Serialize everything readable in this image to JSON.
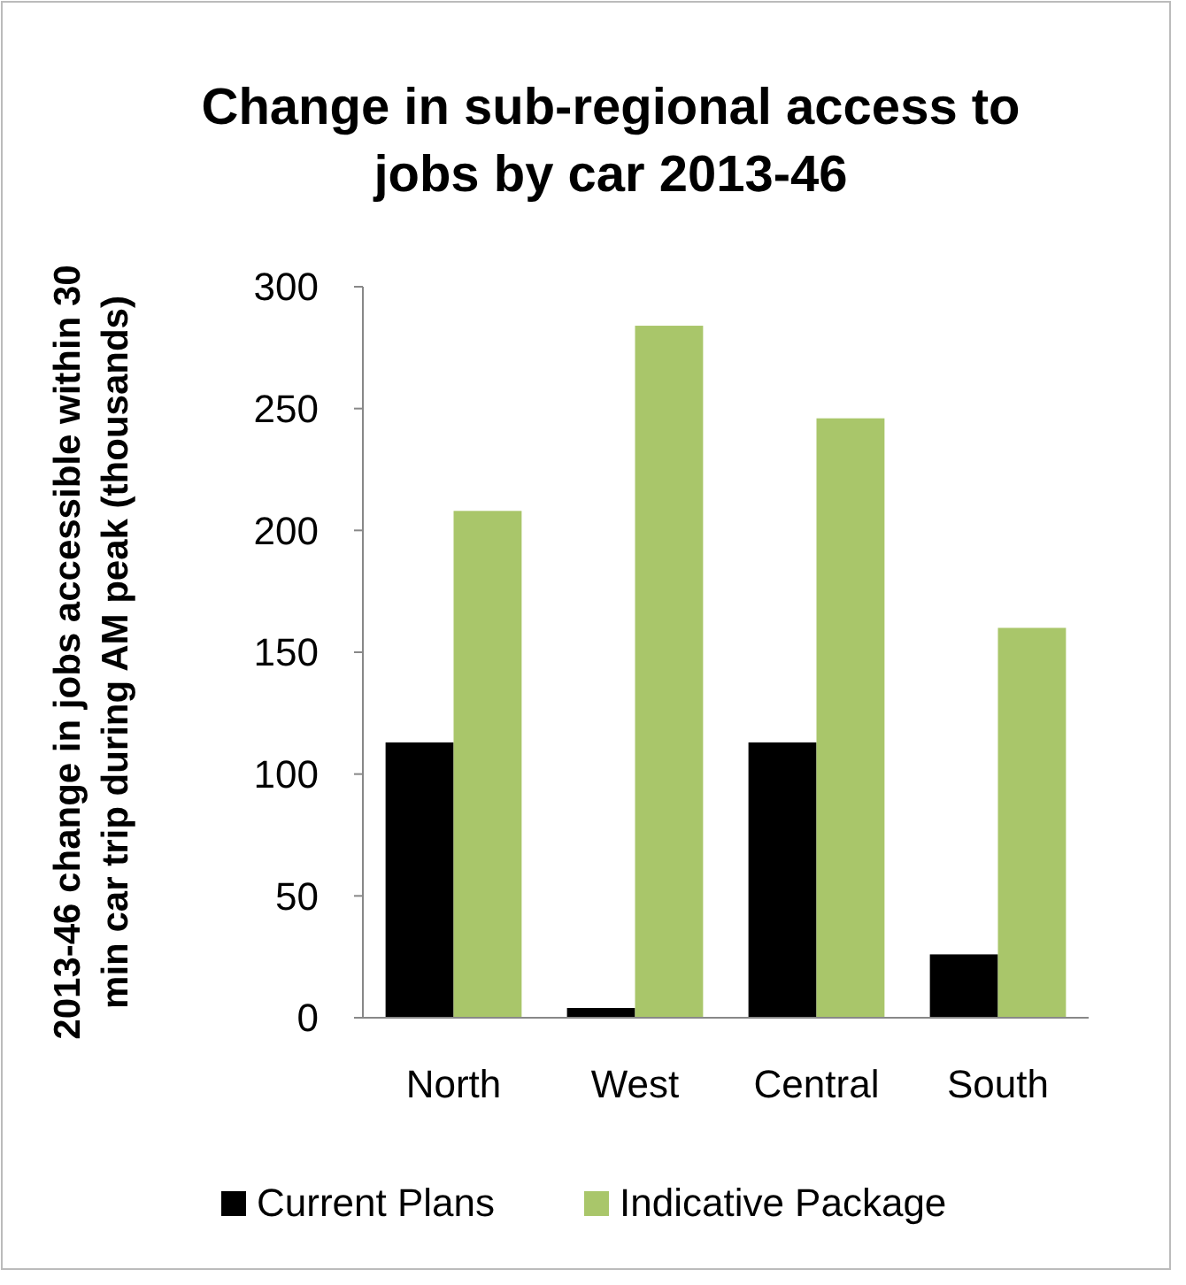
{
  "chart_data": {
    "type": "bar",
    "title": "Change in sub-regional access to jobs by car 2013-46",
    "ylabel": "2013-46 change in jobs accessible within 30 min car trip during AM peak (thousands)",
    "categories": [
      "North",
      "West",
      "Central",
      "South"
    ],
    "series": [
      {
        "name": "Current Plans",
        "color": "#000000",
        "values": [
          113,
          4,
          113,
          26
        ]
      },
      {
        "name": "Indicative Package",
        "color": "#a9c66a",
        "values": [
          208,
          284,
          246,
          160
        ]
      }
    ],
    "ylim": [
      0,
      300
    ],
    "yticks": [
      0,
      50,
      100,
      150,
      200,
      250,
      300
    ],
    "grid": false,
    "legend": "bottom"
  }
}
